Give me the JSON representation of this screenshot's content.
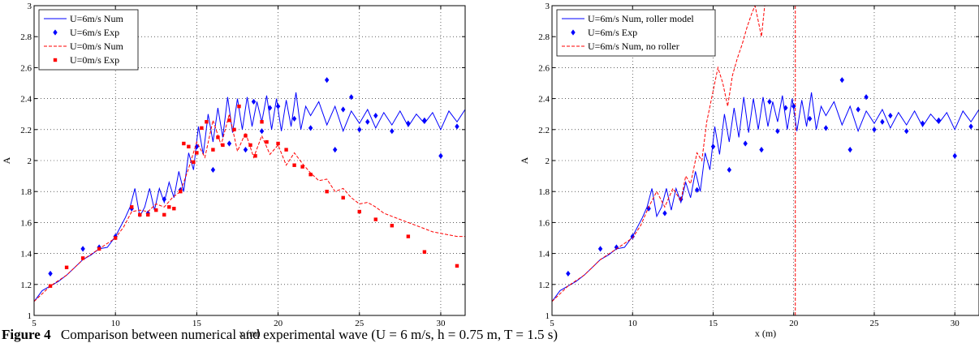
{
  "caption": {
    "label": "Figure 4",
    "text": "Comparison between numerical and experimental wave (U = 6 m/s, h = 0.75 m, T = 1.5 s)"
  },
  "chart_data": [
    {
      "type": "line",
      "title": "",
      "xlabel": "x (m)",
      "ylabel": "A",
      "xlim": [
        5,
        31.5
      ],
      "ylim": [
        1,
        3
      ],
      "xticks": [
        "5",
        "10",
        "15",
        "20",
        "25",
        "30"
      ],
      "yticks": [
        "1",
        "1.2",
        "1.4",
        "1.6",
        "1.8",
        "2",
        "2.2",
        "2.4",
        "2.6",
        "2.8",
        "3"
      ],
      "grid": true,
      "legend_position": "top-left",
      "colors": {
        "blue": "#0000ff",
        "red": "#ff0000"
      },
      "series": [
        {
          "name": "U=6m/s Num",
          "style": "solid-line",
          "color": "#0000ff",
          "x": [
            5.0,
            5.5,
            6.0,
            6.5,
            7.0,
            7.5,
            8.0,
            8.5,
            9.0,
            9.5,
            10.0,
            10.3,
            10.6,
            10.9,
            11.2,
            11.5,
            11.8,
            12.1,
            12.4,
            12.7,
            13.0,
            13.3,
            13.6,
            13.9,
            14.2,
            14.5,
            14.8,
            15.1,
            15.4,
            15.7,
            16.0,
            16.3,
            16.6,
            16.9,
            17.2,
            17.5,
            17.8,
            18.1,
            18.4,
            18.7,
            19.0,
            19.3,
            19.6,
            19.9,
            20.2,
            20.5,
            20.8,
            21.1,
            21.4,
            21.7,
            22.0,
            22.5,
            23.0,
            23.5,
            24.0,
            24.5,
            25.0,
            25.5,
            26.0,
            26.5,
            27.0,
            27.5,
            28.0,
            28.5,
            29.0,
            29.5,
            30.0,
            30.5,
            31.0,
            31.5
          ],
          "y": [
            1.09,
            1.16,
            1.19,
            1.22,
            1.26,
            1.31,
            1.36,
            1.39,
            1.43,
            1.44,
            1.51,
            1.57,
            1.63,
            1.7,
            1.82,
            1.64,
            1.7,
            1.82,
            1.68,
            1.82,
            1.73,
            1.86,
            1.76,
            1.93,
            1.8,
            2.05,
            1.94,
            2.22,
            2.04,
            2.3,
            2.12,
            2.34,
            2.15,
            2.41,
            2.18,
            2.4,
            2.2,
            2.41,
            2.22,
            2.38,
            2.25,
            2.42,
            2.2,
            2.4,
            2.19,
            2.39,
            2.22,
            2.44,
            2.2,
            2.35,
            2.29,
            2.38,
            2.23,
            2.35,
            2.19,
            2.32,
            2.24,
            2.33,
            2.21,
            2.31,
            2.23,
            2.32,
            2.22,
            2.3,
            2.24,
            2.31,
            2.2,
            2.32,
            2.25,
            2.33
          ]
        },
        {
          "name": "U=6m/s Exp",
          "style": "diamond-markers",
          "color": "#0000ff",
          "x": [
            6.0,
            8.0,
            9.0,
            10.0,
            11.0,
            12.0,
            13.0,
            14.0,
            15.0,
            16.0,
            17.0,
            18.0,
            18.5,
            19.0,
            19.5,
            20.0,
            21.0,
            22.0,
            23.0,
            23.5,
            24.0,
            24.5,
            25.0,
            25.5,
            26.0,
            27.0,
            28.0,
            29.0,
            30.0,
            31.0
          ],
          "y": [
            1.27,
            1.43,
            1.44,
            1.51,
            1.69,
            1.66,
            1.75,
            1.81,
            2.09,
            1.94,
            2.11,
            2.07,
            2.38,
            2.19,
            2.34,
            2.35,
            2.27,
            2.21,
            2.52,
            2.07,
            2.33,
            2.41,
            2.2,
            2.25,
            2.29,
            2.19,
            2.24,
            2.26,
            2.03,
            2.22
          ]
        },
        {
          "name": "U=0m/s Num",
          "style": "dashed-line",
          "color": "#ff0000",
          "x": [
            5.0,
            6.0,
            7.0,
            8.0,
            9.0,
            10.0,
            10.5,
            11.0,
            11.5,
            12.0,
            12.5,
            13.0,
            13.5,
            14.0,
            14.5,
            15.0,
            15.5,
            16.0,
            16.5,
            17.0,
            17.5,
            18.0,
            18.5,
            19.0,
            19.5,
            20.0,
            20.5,
            21.0,
            21.5,
            22.0,
            22.5,
            23.0,
            23.5,
            24.0,
            24.5,
            25.0,
            25.5,
            26.0,
            26.5,
            27.0,
            27.5,
            28.0,
            28.5,
            29.0,
            29.5,
            30.0,
            30.5,
            31.0,
            31.5
          ],
          "y": [
            1.09,
            1.19,
            1.26,
            1.36,
            1.43,
            1.5,
            1.57,
            1.67,
            1.68,
            1.67,
            1.72,
            1.7,
            1.76,
            1.8,
            1.95,
            2.12,
            2.02,
            2.26,
            2.1,
            2.3,
            2.06,
            2.18,
            2.02,
            2.16,
            2.04,
            2.1,
            1.97,
            2.05,
            1.98,
            1.92,
            1.87,
            1.88,
            1.8,
            1.82,
            1.76,
            1.72,
            1.73,
            1.7,
            1.66,
            1.64,
            1.62,
            1.6,
            1.58,
            1.56,
            1.54,
            1.53,
            1.52,
            1.51,
            1.51
          ]
        },
        {
          "name": "U=0m/s Exp",
          "style": "square-markers",
          "color": "#ff0000",
          "x": [
            6.0,
            7.0,
            8.0,
            9.0,
            10.0,
            11.0,
            11.5,
            12.0,
            12.5,
            13.0,
            13.3,
            13.6,
            14.0,
            14.2,
            14.5,
            14.8,
            15.0,
            15.3,
            15.6,
            16.0,
            16.3,
            16.6,
            17.0,
            17.3,
            17.6,
            18.0,
            18.3,
            18.6,
            19.0,
            19.3,
            20.0,
            20.5,
            21.0,
            21.5,
            22.0,
            23.0,
            24.0,
            25.0,
            26.0,
            27.0,
            28.0,
            29.0,
            31.0
          ],
          "y": [
            1.19,
            1.31,
            1.37,
            1.43,
            1.5,
            1.7,
            1.65,
            1.65,
            1.68,
            1.65,
            1.7,
            1.69,
            1.8,
            2.11,
            2.09,
            1.99,
            2.05,
            2.21,
            2.25,
            2.07,
            2.15,
            2.1,
            2.26,
            2.2,
            2.35,
            2.16,
            2.1,
            2.03,
            2.25,
            2.12,
            2.11,
            2.07,
            1.97,
            1.96,
            1.91,
            1.8,
            1.76,
            1.67,
            1.62,
            1.58,
            1.51,
            1.41,
            1.32
          ]
        }
      ]
    },
    {
      "type": "line",
      "title": "",
      "xlabel": "x (m)",
      "ylabel": "A",
      "xlim": [
        5,
        31.5
      ],
      "ylim": [
        1,
        3
      ],
      "xticks": [
        "5",
        "10",
        "15",
        "20",
        "25",
        "30"
      ],
      "yticks": [
        "1",
        "1.2",
        "1.4",
        "1.6",
        "1.8",
        "2",
        "2.2",
        "2.4",
        "2.6",
        "2.8",
        "3"
      ],
      "grid": true,
      "legend_position": "top-left",
      "vertical_line": {
        "x": 20.1,
        "color": "#ff0000",
        "style": "dashed"
      },
      "series": [
        {
          "name": "U=6m/s Num, roller model",
          "style": "solid-line",
          "color": "#0000ff",
          "x": [
            5.0,
            5.5,
            6.0,
            6.5,
            7.0,
            7.5,
            8.0,
            8.5,
            9.0,
            9.5,
            10.0,
            10.3,
            10.6,
            10.9,
            11.2,
            11.5,
            11.8,
            12.1,
            12.4,
            12.7,
            13.0,
            13.3,
            13.6,
            13.9,
            14.2,
            14.5,
            14.8,
            15.1,
            15.4,
            15.7,
            16.0,
            16.3,
            16.6,
            16.9,
            17.2,
            17.5,
            17.8,
            18.1,
            18.4,
            18.7,
            19.0,
            19.3,
            19.6,
            19.9,
            20.2,
            20.5,
            20.8,
            21.1,
            21.4,
            21.7,
            22.0,
            22.5,
            23.0,
            23.5,
            24.0,
            24.5,
            25.0,
            25.5,
            26.0,
            26.5,
            27.0,
            27.5,
            28.0,
            28.5,
            29.0,
            29.5,
            30.0,
            30.5,
            31.0,
            31.5
          ],
          "y": [
            1.09,
            1.16,
            1.19,
            1.22,
            1.26,
            1.31,
            1.36,
            1.39,
            1.43,
            1.44,
            1.51,
            1.57,
            1.63,
            1.7,
            1.82,
            1.64,
            1.7,
            1.82,
            1.68,
            1.82,
            1.73,
            1.86,
            1.76,
            1.93,
            1.8,
            2.05,
            1.94,
            2.22,
            2.04,
            2.3,
            2.12,
            2.34,
            2.15,
            2.41,
            2.18,
            2.4,
            2.2,
            2.41,
            2.22,
            2.38,
            2.25,
            2.42,
            2.2,
            2.4,
            2.19,
            2.39,
            2.22,
            2.44,
            2.2,
            2.35,
            2.29,
            2.38,
            2.23,
            2.35,
            2.19,
            2.32,
            2.24,
            2.33,
            2.21,
            2.31,
            2.23,
            2.32,
            2.22,
            2.3,
            2.24,
            2.31,
            2.2,
            2.32,
            2.25,
            2.33
          ]
        },
        {
          "name": "U=6m/s Exp",
          "style": "diamond-markers",
          "color": "#0000ff",
          "x": [
            6.0,
            8.0,
            9.0,
            10.0,
            11.0,
            12.0,
            13.0,
            14.0,
            15.0,
            16.0,
            17.0,
            18.0,
            18.5,
            19.0,
            19.5,
            20.0,
            21.0,
            22.0,
            23.0,
            23.5,
            24.0,
            24.5,
            25.0,
            25.5,
            26.0,
            27.0,
            28.0,
            29.0,
            30.0,
            31.0
          ],
          "y": [
            1.27,
            1.43,
            1.44,
            1.51,
            1.69,
            1.66,
            1.75,
            1.81,
            2.09,
            1.94,
            2.11,
            2.07,
            2.38,
            2.19,
            2.34,
            2.35,
            2.27,
            2.21,
            2.52,
            2.07,
            2.33,
            2.41,
            2.2,
            2.25,
            2.29,
            2.19,
            2.24,
            2.26,
            2.03,
            2.22
          ]
        },
        {
          "name": "U=6m/s Num, no roller",
          "style": "dashed-line",
          "color": "#ff0000",
          "x": [
            5.0,
            6.0,
            7.0,
            8.0,
            9.0,
            10.0,
            10.5,
            11.0,
            11.5,
            12.0,
            12.5,
            13.0,
            13.3,
            13.6,
            14.0,
            14.3,
            14.6,
            15.0,
            15.3,
            15.6,
            15.9,
            16.2,
            16.5,
            16.8,
            17.1,
            17.4,
            17.6,
            17.8,
            18.0,
            18.2
          ],
          "y": [
            1.09,
            1.19,
            1.26,
            1.36,
            1.43,
            1.5,
            1.58,
            1.7,
            1.8,
            1.7,
            1.82,
            1.74,
            1.9,
            1.85,
            2.05,
            2.0,
            2.25,
            2.45,
            2.6,
            2.5,
            2.35,
            2.55,
            2.66,
            2.75,
            2.86,
            2.95,
            3.0,
            2.9,
            2.8,
            3.0
          ]
        }
      ]
    }
  ]
}
